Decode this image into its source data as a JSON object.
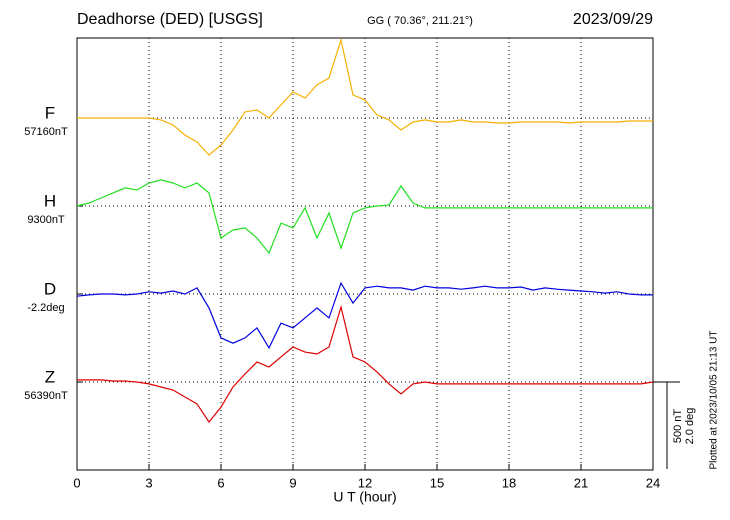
{
  "chart_data": {
    "type": "line",
    "title": "Deadhorse (DED)  [USGS]",
    "subtitle": "GG ( 70.36°, 211.21°)",
    "date": "2023/09/29",
    "xlabel": "U T (hour)",
    "footnote": "Plotted at 2023/10/05 21:13 UT",
    "xlim": [
      0,
      24
    ],
    "xticks": [
      0,
      3,
      6,
      9,
      12,
      15,
      18,
      21,
      24
    ],
    "grid": true,
    "scale_bar": {
      "nT": {
        "value": 500,
        "label": "500 nT"
      },
      "deg": {
        "value": 2.0,
        "label": "2.0 deg"
      }
    },
    "x": [
      0,
      0.5,
      1,
      1.5,
      2,
      2.5,
      3,
      3.5,
      4,
      4.5,
      5,
      5.5,
      6,
      6.5,
      7,
      7.5,
      8,
      8.5,
      9,
      9.5,
      10,
      10.5,
      11,
      11.5,
      12,
      12.5,
      13,
      13.5,
      14,
      14.5,
      15,
      15.5,
      16,
      16.5,
      17,
      17.5,
      18,
      18.5,
      19,
      19.5,
      20,
      20.5,
      21,
      21.5,
      22,
      22.5,
      23,
      23.5,
      24
    ],
    "series": [
      {
        "name": "F",
        "color": "#f5b000",
        "unit": "nT",
        "baseline": {
          "value": 57160,
          "label": "57160nT"
        },
        "values": [
          57160,
          57160,
          57160,
          57160,
          57160,
          57160,
          57160,
          57149,
          57120,
          57062,
          57022,
          56947,
          57005,
          57091,
          57195,
          57206,
          57160,
          57235,
          57310,
          57275,
          57350,
          57390,
          57609,
          57292,
          57264,
          57177,
          57149,
          57091,
          57137,
          57149,
          57137,
          57137,
          57149,
          57137,
          57137,
          57131,
          57131,
          57137,
          57137,
          57137,
          57137,
          57131,
          57137,
          57137,
          57137,
          57137,
          57143,
          57143,
          57143
        ]
      },
      {
        "name": "H",
        "color": "#22e022",
        "unit": "nT",
        "baseline": {
          "value": 9300,
          "label": "9300nT"
        },
        "values": [
          9300,
          9317,
          9346,
          9375,
          9404,
          9392,
          9432,
          9450,
          9432,
          9404,
          9432,
          9375,
          9116,
          9162,
          9174,
          9116,
          9030,
          9202,
          9174,
          9289,
          9116,
          9260,
          9058,
          9260,
          9289,
          9300,
          9306,
          9415,
          9317,
          9289,
          9289,
          9289,
          9289,
          9289,
          9289,
          9289,
          9289,
          9289,
          9289,
          9289,
          9289,
          9289,
          9289,
          9289,
          9289,
          9289,
          9289,
          9289,
          9289
        ]
      },
      {
        "name": "D",
        "color": "#0000e0",
        "unit": "deg",
        "baseline": {
          "value": -2.2,
          "label": "-2.2deg"
        },
        "values": [
          -2.25,
          -2.22,
          -2.2,
          -2.2,
          -2.22,
          -2.2,
          -2.15,
          -2.18,
          -2.13,
          -2.2,
          -2.06,
          -2.52,
          -3.21,
          -3.33,
          -3.21,
          -2.98,
          -3.44,
          -2.87,
          -2.98,
          -2.75,
          -2.52,
          -2.75,
          -1.95,
          -2.41,
          -2.06,
          -2.02,
          -2.06,
          -2.06,
          -2.11,
          -2.02,
          -2.06,
          -2.06,
          -2.09,
          -2.06,
          -2.02,
          -2.06,
          -2.06,
          -2.04,
          -2.11,
          -2.06,
          -2.09,
          -2.11,
          -2.13,
          -2.15,
          -2.18,
          -2.15,
          -2.2,
          -2.22,
          -2.22
        ]
      },
      {
        "name": "Z",
        "color": "#e00000",
        "unit": "nT",
        "baseline": {
          "value": 56390,
          "label": "56390nT"
        },
        "values": [
          56402,
          56402,
          56402,
          56396,
          56396,
          56390,
          56379,
          56361,
          56344,
          56304,
          56264,
          56160,
          56246,
          56361,
          56436,
          56505,
          56476,
          56534,
          56591,
          56562,
          56551,
          56591,
          56821,
          56534,
          56505,
          56448,
          56379,
          56321,
          56379,
          56390,
          56379,
          56379,
          56379,
          56379,
          56379,
          56379,
          56379,
          56379,
          56379,
          56379,
          56379,
          56379,
          56379,
          56379,
          56379,
          56379,
          56379,
          56379,
          56390
        ]
      }
    ]
  }
}
